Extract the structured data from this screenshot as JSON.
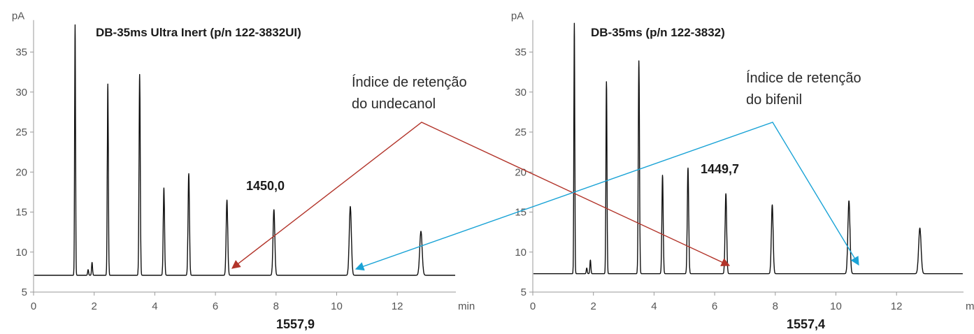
{
  "chart_data": [
    {
      "type": "line",
      "title": "DB-35ms Ultra Inert (p/n 122-3832UI)",
      "ylabel": "pA",
      "xlabel": "min",
      "xlim": [
        0,
        14
      ],
      "ylim": [
        5,
        39
      ],
      "xticks": [
        "0",
        "2",
        "4",
        "6",
        "8",
        "10",
        "12"
      ],
      "yticks": [
        "5",
        "10",
        "15",
        "20",
        "25",
        "30",
        "35"
      ],
      "baseline": 7.1,
      "peaks": [
        {
          "x": 1.37,
          "y": 38.4
        },
        {
          "x": 1.8,
          "y": 7.8
        },
        {
          "x": 1.93,
          "y": 8.7
        },
        {
          "x": 2.45,
          "y": 31.0
        },
        {
          "x": 3.5,
          "y": 32.2
        },
        {
          "x": 4.3,
          "y": 18.0
        },
        {
          "x": 5.12,
          "y": 19.8
        },
        {
          "x": 6.38,
          "y": 16.5
        },
        {
          "x": 7.93,
          "y": 15.3
        },
        {
          "x": 10.45,
          "y": 15.7
        },
        {
          "x": 12.78,
          "y": 12.6
        }
      ],
      "labels": [
        {
          "text": "1450,0",
          "peak_x": 6.38
        },
        {
          "text": "1557,9",
          "peak_x": 10.45
        }
      ]
    },
    {
      "type": "line",
      "title": "DB-35ms (p/n 122-3832)",
      "ylabel": "pA",
      "xlabel": "min",
      "xlim": [
        0,
        14
      ],
      "ylim": [
        5,
        39
      ],
      "xticks": [
        "0",
        "2",
        "4",
        "6",
        "8",
        "10",
        "12"
      ],
      "yticks": [
        "5",
        "10",
        "15",
        "20",
        "25",
        "30",
        "35"
      ],
      "baseline": 7.3,
      "peaks": [
        {
          "x": 1.37,
          "y": 38.6
        },
        {
          "x": 1.78,
          "y": 8.0
        },
        {
          "x": 1.9,
          "y": 9.0
        },
        {
          "x": 2.43,
          "y": 31.3
        },
        {
          "x": 3.5,
          "y": 33.9
        },
        {
          "x": 4.28,
          "y": 19.6
        },
        {
          "x": 5.12,
          "y": 20.5
        },
        {
          "x": 6.37,
          "y": 17.3
        },
        {
          "x": 7.9,
          "y": 15.9
        },
        {
          "x": 10.43,
          "y": 16.4
        },
        {
          "x": 12.77,
          "y": 13.0
        }
      ],
      "labels": [
        {
          "text": "1449,7",
          "peak_x": 6.37
        },
        {
          "text": "1557,4",
          "peak_x": 10.43
        }
      ]
    }
  ],
  "annotations": {
    "undecanol_line1": "Índice de retenção",
    "undecanol_line2": "do undecanol",
    "undecanol_color": "#b2342a",
    "bifenil_line1": "Índice de retenção",
    "bifenil_line2": "do bifenil",
    "bifenil_color": "#1aa3d6"
  }
}
